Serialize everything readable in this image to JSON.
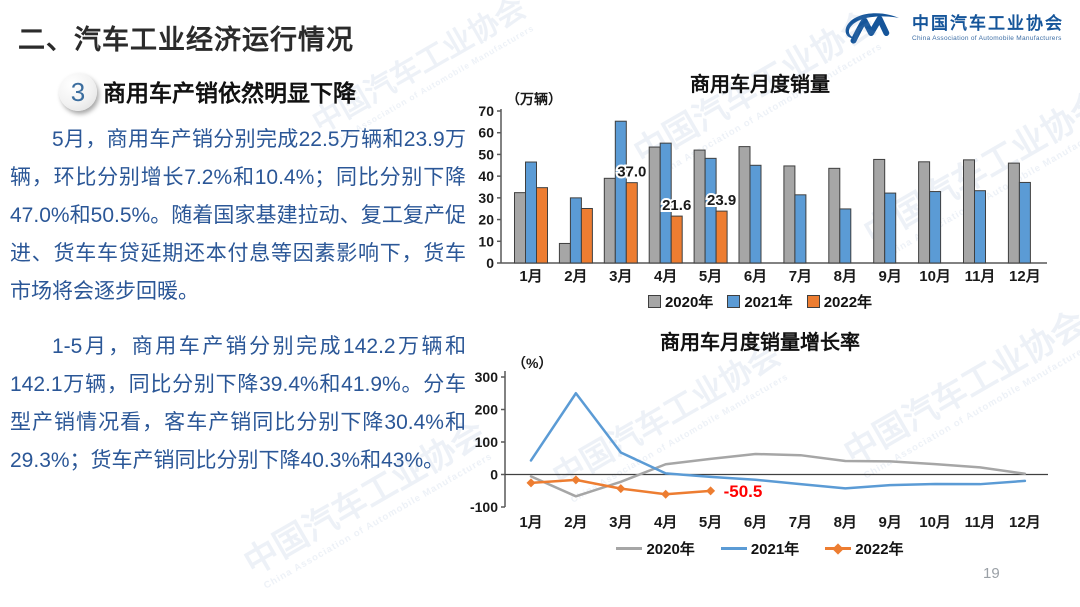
{
  "slide": {
    "title": "二、汽车工业经济运行情况",
    "page_number": "19"
  },
  "logo": {
    "monogram": "CM",
    "name_cn": "中国汽车工业协会",
    "name_en": "China Association of Automobile Manufacturers"
  },
  "section": {
    "number": "3",
    "heading": "商用车产销依然明显下降"
  },
  "body": {
    "paragraph1": "5月，商用车产销分别完成22.5万辆和23.9万辆，环比分别增长7.2%和10.4%；同比分别下降47.0%和50.5%。随着国家基建拉动、复工复产促进、货车车贷延期还本付息等因素影响下，货车市场将会逐步回暖。",
    "paragraph2": "1-5月，商用车产销分别完成142.2万辆和142.1万辆，同比分别下降39.4%和41.9%。分车型产销情况看，客车产销同比分别下降30.4%和29.3%；货车产销同比分别下降40.3%和43%。"
  },
  "watermark": {
    "cn": "中国汽车工业协会",
    "en": "China Association of Automobile Manufacturers"
  },
  "colors": {
    "series_2020": "#A6A6A6",
    "series_2021": "#5B9BD5",
    "series_2022": "#ED7D31",
    "axis": "#595959",
    "body_text": "#2B5797",
    "annotation_red": "#FF0000",
    "logo_blue": "#15559A"
  },
  "chart_data": [
    {
      "type": "bar",
      "title": "商用车月度销量",
      "unit_label": "（万辆）",
      "categories": [
        "1月",
        "2月",
        "3月",
        "4月",
        "5月",
        "6月",
        "7月",
        "8月",
        "9月",
        "10月",
        "11月",
        "12月"
      ],
      "series": [
        {
          "name": "2020年",
          "color": "#A6A6A6",
          "values": [
            32.4,
            9.0,
            39.0,
            53.4,
            52.0,
            53.6,
            44.7,
            43.6,
            47.7,
            46.6,
            47.5,
            46.0
          ]
        },
        {
          "name": "2021年",
          "color": "#5B9BD5",
          "values": [
            46.5,
            30.0,
            65.3,
            55.2,
            48.2,
            45.0,
            31.4,
            24.9,
            32.2,
            32.9,
            33.3,
            37.1
          ]
        },
        {
          "name": "2022年",
          "color": "#ED7D31",
          "values": [
            34.7,
            25.1,
            37.0,
            21.6,
            23.9,
            null,
            null,
            null,
            null,
            null,
            null,
            null
          ]
        }
      ],
      "y_ticks": [
        0,
        10,
        20,
        30,
        40,
        50,
        60,
        70
      ],
      "ylim": [
        0,
        70
      ],
      "grid": false,
      "legend_position": "bottom",
      "data_labels": [
        {
          "series": "2022年",
          "month_index": 2,
          "text": "37.0"
        },
        {
          "series": "2022年",
          "month_index": 3,
          "text": "21.6"
        },
        {
          "series": "2022年",
          "month_index": 4,
          "text": "23.9"
        }
      ]
    },
    {
      "type": "line",
      "title": "商用车月度销量增长率",
      "unit_label": "（%）",
      "categories": [
        "1月",
        "2月",
        "3月",
        "4月",
        "5月",
        "6月",
        "7月",
        "8月",
        "9月",
        "10月",
        "11月",
        "12月"
      ],
      "series": [
        {
          "name": "2020年",
          "color": "#A6A6A6",
          "values": [
            -5.7,
            -67.1,
            -22.6,
            31.6,
            48.0,
            63.1,
            59.4,
            41.6,
            40.3,
            32.0,
            22.0,
            2.3
          ]
        },
        {
          "name": "2021年",
          "color": "#5B9BD5",
          "values": [
            43.1,
            250.0,
            67.7,
            3.5,
            -7.3,
            -16.0,
            -29.7,
            -42.8,
            -32.6,
            -29.4,
            -29.8,
            -19.6
          ]
        },
        {
          "name": "2022年",
          "color": "#ED7D31",
          "marker": "diamond",
          "values": [
            -25.9,
            -16.6,
            -43.5,
            -60.7,
            -50.5
          ]
        }
      ],
      "y_ticks": [
        -100,
        0,
        100,
        200,
        300
      ],
      "ylim": [
        -100,
        300
      ],
      "grid": false,
      "legend_position": "bottom",
      "annotation": {
        "text": "-50.5",
        "series": "2022年",
        "month_index": 4,
        "color": "#FF0000"
      }
    }
  ]
}
